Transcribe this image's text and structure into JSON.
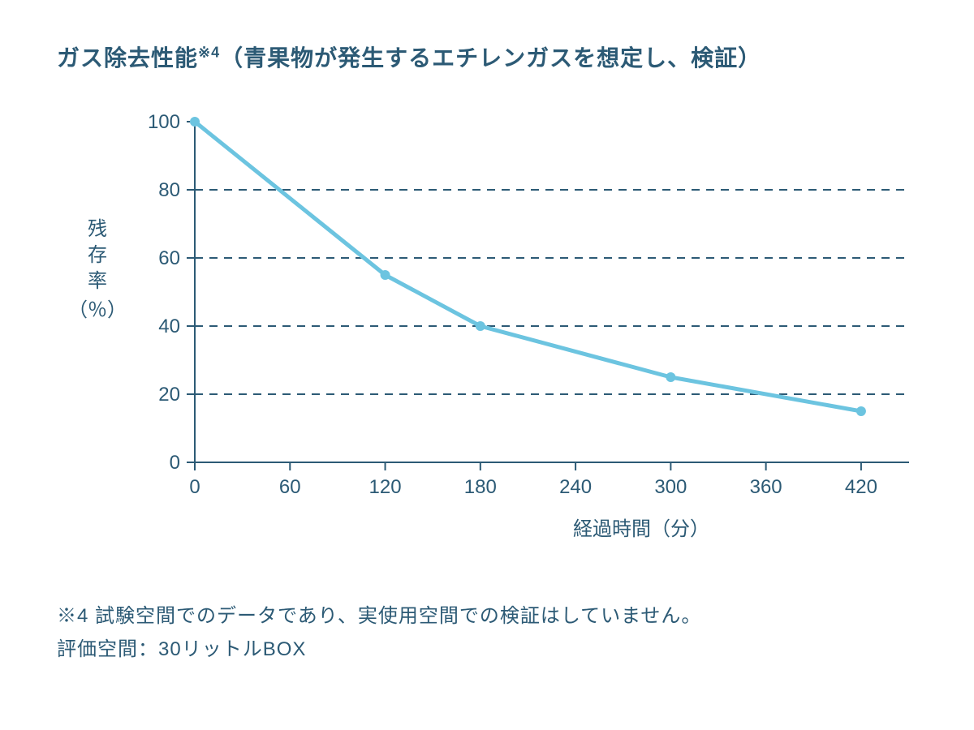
{
  "title_main": "ガス除去性能",
  "title_sup": "※4",
  "title_paren": "（青果物が発生するエチレンガスを想定し、検証）",
  "chart": {
    "type": "line",
    "x_values": [
      0,
      120,
      180,
      300,
      420
    ],
    "y_values": [
      100,
      55,
      40,
      25,
      15
    ],
    "line_color": "#6cc4e0",
    "marker_color": "#6cc4e0",
    "line_width": 5,
    "marker_radius": 6,
    "grid_color": "#2c5a75",
    "axis_color": "#2c5a75",
    "text_color": "#2c5a75",
    "background_color": "#ffffff",
    "xlim": [
      0,
      440
    ],
    "ylim": [
      0,
      100
    ],
    "x_ticks": [
      0,
      60,
      120,
      180,
      240,
      300,
      360,
      420
    ],
    "y_ticks": [
      0,
      20,
      40,
      60,
      80,
      100
    ],
    "y_gridlines": [
      20,
      40,
      60,
      80
    ],
    "xlabel": "経過時間（分）",
    "ylabel_vertical": "残存率",
    "ylabel_pct": "（％）",
    "tick_fontsize": 24,
    "label_fontsize": 24,
    "grid_dash": "10,8",
    "axis_width": 2,
    "tick_length": 10
  },
  "footnote_line1": "※4 試験空間でのデータであり、実使用空間での検証はしていません。",
  "footnote_line2": "評価空間：30リットルBOX"
}
